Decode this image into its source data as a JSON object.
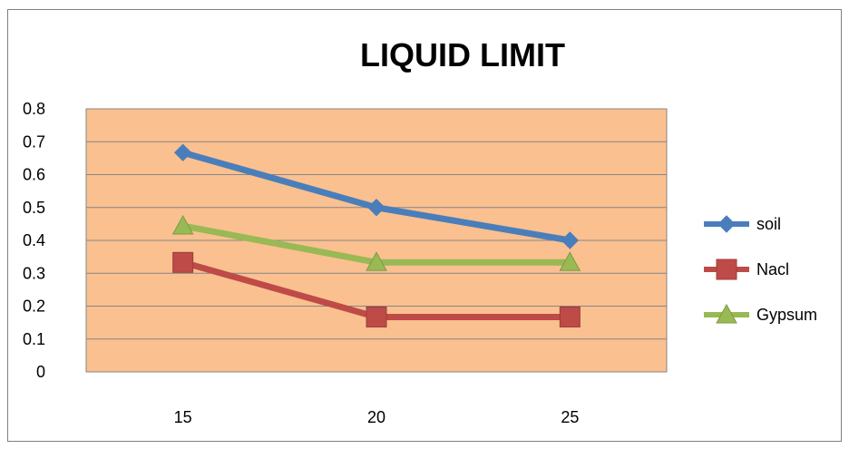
{
  "chart_data": {
    "type": "line",
    "title": "LIQUID LIMIT",
    "xlabel": "",
    "ylabel": "",
    "categories": [
      "15",
      "20",
      "25"
    ],
    "ylim": [
      0,
      0.8
    ],
    "yticks": [
      "0",
      "0.1",
      "0.2",
      "0.3",
      "0.4",
      "0.5",
      "0.6",
      "0.7",
      "0.8"
    ],
    "grid": true,
    "legend_position": "right",
    "plot_background": "#fac090",
    "series": [
      {
        "name": "soil",
        "values": [
          0.667,
          0.5,
          0.4
        ],
        "color": "#4a7ebb",
        "marker": "diamond"
      },
      {
        "name": "Nacl",
        "values": [
          0.333,
          0.167,
          0.167
        ],
        "color": "#be4b48",
        "marker": "square"
      },
      {
        "name": "Gypsum",
        "values": [
          0.444,
          0.333,
          0.333
        ],
        "color": "#98b954",
        "marker": "triangle"
      }
    ]
  }
}
